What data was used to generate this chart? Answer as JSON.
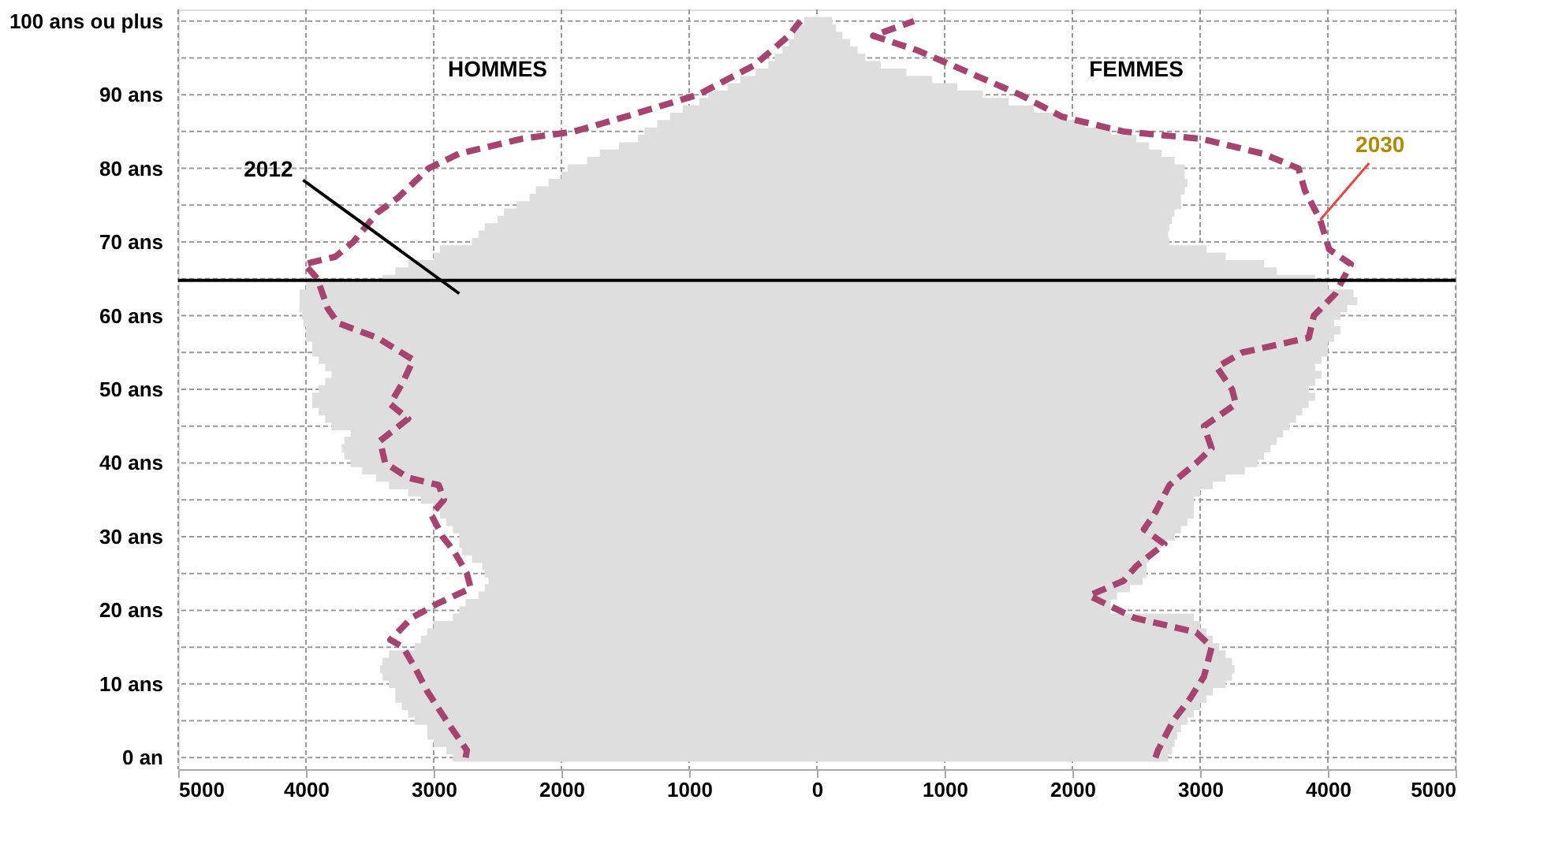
{
  "chart_data": {
    "type": "bar",
    "orientation": "horizontal",
    "x": [
      0,
      1,
      2,
      3,
      4,
      5,
      6,
      7,
      8,
      9,
      10,
      11,
      12,
      13,
      14,
      15,
      16,
      17,
      18,
      19,
      20,
      21,
      22,
      23,
      24,
      25,
      26,
      27,
      28,
      29,
      30,
      31,
      32,
      33,
      34,
      35,
      36,
      37,
      38,
      39,
      40,
      41,
      42,
      43,
      44,
      45,
      46,
      47,
      48,
      49,
      50,
      51,
      52,
      53,
      54,
      55,
      56,
      57,
      58,
      59,
      60,
      61,
      62,
      63,
      64,
      65,
      66,
      67,
      68,
      69,
      70,
      71,
      72,
      73,
      74,
      75,
      76,
      77,
      78,
      79,
      80,
      81,
      82,
      83,
      84,
      85,
      86,
      87,
      88,
      89,
      90,
      91,
      92,
      93,
      94,
      95,
      96,
      97,
      98,
      99,
      100
    ],
    "series": [
      {
        "color": "#dedede",
        "values": [
          -2850,
          -2900,
          -3000,
          -3050,
          -3050,
          -3150,
          -3200,
          -3250,
          -3300,
          -3300,
          -3350,
          -3400,
          -3420,
          -3400,
          -3350,
          -3150,
          -3100,
          -3050,
          -3000,
          -2850,
          -2800,
          -2750,
          -2650,
          -2600,
          -2570,
          -2600,
          -2620,
          -2700,
          -2780,
          -2800,
          -2800,
          -2850,
          -2900,
          -2950,
          -3000,
          -3100,
          -3200,
          -3350,
          -3450,
          -3560,
          -3650,
          -3700,
          -3720,
          -3700,
          -3650,
          -3800,
          -3850,
          -3900,
          -3950,
          -3950,
          -3900,
          -3850,
          -3800,
          -3850,
          -3900,
          -3950,
          -3950,
          -4000,
          -4000,
          -4020,
          -4030,
          -4050,
          -4050,
          -4050,
          -4000,
          -3400,
          -3300,
          -3200,
          -3000,
          -2950,
          -2700,
          -2650,
          -2600,
          -2500,
          -2450,
          -2350,
          -2250,
          -2200,
          -2100,
          -2000,
          -1950,
          -1800,
          -1700,
          -1550,
          -1400,
          -1350,
          -1250,
          -1150,
          -1050,
          -920,
          -850,
          -700,
          -600,
          -480,
          -380,
          -330,
          -270,
          -220,
          -180,
          -150,
          -100
        ]
      },
      {
        "color": "#dedede",
        "values": [
          2750,
          2780,
          2800,
          2820,
          2850,
          2900,
          2950,
          3000,
          3050,
          3100,
          3200,
          3250,
          3270,
          3250,
          3200,
          3150,
          3100,
          3050,
          3000,
          2950,
          2300,
          2300,
          2350,
          2450,
          2550,
          2580,
          2580,
          2600,
          2650,
          2700,
          2800,
          2850,
          2900,
          2950,
          2950,
          2950,
          3000,
          3100,
          3200,
          3350,
          3450,
          3500,
          3550,
          3600,
          3650,
          3700,
          3750,
          3800,
          3850,
          3900,
          3850,
          3900,
          3950,
          3900,
          3950,
          4000,
          4000,
          4050,
          4100,
          4050,
          4100,
          4150,
          4230,
          4200,
          4000,
          3900,
          3600,
          3500,
          3200,
          3050,
          2760,
          2750,
          2760,
          2780,
          2800,
          2850,
          2850,
          2880,
          2900,
          2880,
          2880,
          2800,
          2700,
          2600,
          2500,
          2300,
          2100,
          1900,
          1700,
          1500,
          1300,
          1100,
          900,
          700,
          500,
          380,
          320,
          260,
          200,
          150,
          120
        ]
      },
      {
        "type": "line",
        "color": "#a6446f",
        "x": [
          0,
          1,
          5,
          9,
          12,
          15,
          16,
          19,
          21,
          23,
          25,
          28,
          30,
          33,
          35,
          37,
          38,
          40,
          43,
          46,
          48,
          51,
          54,
          57,
          59,
          61,
          65,
          67,
          68,
          70,
          74,
          76,
          80,
          82,
          84,
          85,
          87,
          90,
          94,
          98,
          100
        ],
        "values": [
          -2750,
          -2740,
          -2900,
          -3050,
          -3140,
          -3240,
          -3340,
          -3170,
          -2960,
          -2710,
          -2740,
          -2840,
          -2930,
          -3020,
          -2920,
          -2960,
          -3200,
          -3380,
          -3420,
          -3200,
          -3340,
          -3240,
          -3160,
          -3440,
          -3750,
          -3830,
          -3910,
          -4010,
          -3770,
          -3630,
          -3440,
          -3280,
          -3040,
          -2800,
          -2310,
          -1900,
          -1500,
          -930,
          -490,
          -220,
          -130
        ]
      },
      {
        "type": "line",
        "color": "#a6446f",
        "x": [
          0,
          1,
          5,
          8,
          11,
          15,
          17,
          19,
          22,
          24,
          26,
          29,
          31,
          33,
          37,
          40,
          42,
          45,
          48,
          50,
          53,
          55,
          57,
          60,
          63,
          67,
          69,
          73,
          77,
          80,
          82,
          84,
          85,
          87,
          90,
          93,
          96,
          98,
          100
        ],
        "values": [
          2650,
          2670,
          2790,
          2920,
          3030,
          3090,
          2970,
          2480,
          2130,
          2400,
          2500,
          2720,
          2560,
          2640,
          2760,
          2970,
          3090,
          3030,
          3280,
          3250,
          3130,
          3330,
          3850,
          3890,
          4060,
          4180,
          4010,
          3940,
          3820,
          3770,
          3490,
          3010,
          2400,
          1920,
          1590,
          1190,
          790,
          440,
          760
        ]
      }
    ],
    "stacked": true,
    "line_style": "dashed",
    "xlim": [
      -5000,
      5000
    ],
    "xticks": [
      {
        "value": -5000,
        "label": "5000"
      },
      {
        "value": -4000,
        "label": "4000"
      },
      {
        "value": -3000,
        "label": "3000"
      },
      {
        "value": -2000,
        "label": "2000"
      },
      {
        "value": -1000,
        "label": "1000"
      },
      0,
      1000,
      2000,
      3000,
      4000,
      5000
    ],
    "ylim": [
      -0.5,
      100.5
    ],
    "yticks": [
      {
        "value": 0,
        "label": "0 an"
      },
      {
        "value": 5,
        "label": null
      },
      {
        "value": 10,
        "label": "10 ans"
      },
      {
        "value": 15,
        "label": null
      },
      {
        "value": 20,
        "label": "20 ans"
      },
      {
        "value": 25,
        "label": null
      },
      {
        "value": 30,
        "label": "30 ans"
      },
      {
        "value": 35,
        "label": null
      },
      {
        "value": 40,
        "label": "40 ans"
      },
      {
        "value": 45,
        "label": null
      },
      {
        "value": 50,
        "label": "50 ans"
      },
      {
        "value": 55,
        "label": null
      },
      {
        "value": 60,
        "label": "60 ans"
      },
      {
        "value": 65,
        "label": null
      },
      {
        "value": 70,
        "label": "70 ans"
      },
      {
        "value": 75,
        "label": null
      },
      {
        "value": 80,
        "label": "80 ans"
      },
      {
        "value": 85,
        "label": null
      },
      {
        "value": 90,
        "label": "90 ans"
      },
      {
        "value": 95,
        "label": null
      },
      {
        "value": 100,
        "label": "100 ans ou plus"
      }
    ],
    "grid": true,
    "legend": false,
    "ref_lines": [
      {
        "axis": "y",
        "value": 64.8,
        "color": "#000000"
      }
    ],
    "annotations": [
      "HOMMES",
      "FEMMES",
      {
        "text": "2012",
        "x": -2800,
        "y": 63
      },
      {
        "text": "2030",
        "x": 3940,
        "y": 73
      }
    ]
  }
}
